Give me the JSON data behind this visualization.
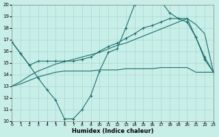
{
  "background_color": "#c8eee8",
  "grid_color": "#a8d8d0",
  "line_color": "#1a6b6b",
  "xlabel": "Humidex (Indice chaleur)",
  "xlim": [
    0,
    23
  ],
  "ylim": [
    10,
    20
  ],
  "yticks": [
    10,
    11,
    12,
    13,
    14,
    15,
    16,
    17,
    18,
    19,
    20
  ],
  "xticks": [
    0,
    1,
    2,
    3,
    4,
    5,
    6,
    7,
    8,
    9,
    10,
    11,
    12,
    13,
    14,
    15,
    16,
    17,
    18,
    19,
    20,
    21,
    22,
    23
  ],
  "series": [
    {
      "x": [
        0,
        1,
        2,
        3,
        4,
        5,
        6,
        7,
        8,
        9,
        10,
        11,
        12,
        13,
        14,
        15,
        16,
        17,
        18,
        19,
        20,
        21,
        22,
        23
      ],
      "y": [
        16.8,
        15.8,
        14.8,
        13.7,
        12.7,
        11.8,
        10.2,
        10.2,
        11.0,
        12.2,
        14.3,
        15.9,
        16.2,
        18.0,
        20.0,
        20.1,
        20.5,
        20.3,
        19.3,
        18.8,
        18.5,
        17.2,
        15.5,
        14.2
      ],
      "marker": "+",
      "lw": 0.8
    },
    {
      "x": [
        0,
        1,
        2,
        3,
        4,
        5,
        6,
        7,
        8,
        9,
        10,
        11,
        12,
        13,
        14,
        15,
        16,
        17,
        18,
        19,
        20,
        21,
        22,
        23
      ],
      "y": [
        16.8,
        15.8,
        14.8,
        15.15,
        15.15,
        15.15,
        15.15,
        15.15,
        15.3,
        15.5,
        16.0,
        16.4,
        16.7,
        17.1,
        17.5,
        18.0,
        18.2,
        18.5,
        18.8,
        18.8,
        18.8,
        17.2,
        15.3,
        14.2
      ],
      "marker": "+",
      "lw": 0.8
    },
    {
      "x": [
        0,
        1,
        2,
        3,
        4,
        5,
        6,
        7,
        8,
        9,
        10,
        11,
        12,
        13,
        14,
        15,
        16,
        17,
        18,
        19,
        20,
        21,
        22,
        23
      ],
      "y": [
        13.0,
        13.2,
        13.5,
        13.8,
        14.0,
        14.2,
        14.3,
        14.3,
        14.3,
        14.3,
        14.4,
        14.4,
        14.4,
        14.5,
        14.5,
        14.5,
        14.5,
        14.6,
        14.6,
        14.6,
        14.6,
        14.2,
        14.2,
        14.2
      ],
      "marker": null,
      "lw": 0.8
    },
    {
      "x": [
        0,
        1,
        2,
        3,
        4,
        5,
        6,
        7,
        8,
        9,
        10,
        11,
        12,
        13,
        14,
        15,
        16,
        17,
        18,
        19,
        20,
        21,
        22,
        23
      ],
      "y": [
        13.0,
        13.4,
        13.9,
        14.3,
        14.6,
        14.9,
        15.1,
        15.3,
        15.5,
        15.7,
        15.9,
        16.2,
        16.5,
        16.7,
        17.0,
        17.3,
        17.6,
        17.9,
        18.2,
        18.5,
        18.8,
        18.3,
        17.5,
        14.2
      ],
      "marker": null,
      "lw": 0.8
    }
  ]
}
